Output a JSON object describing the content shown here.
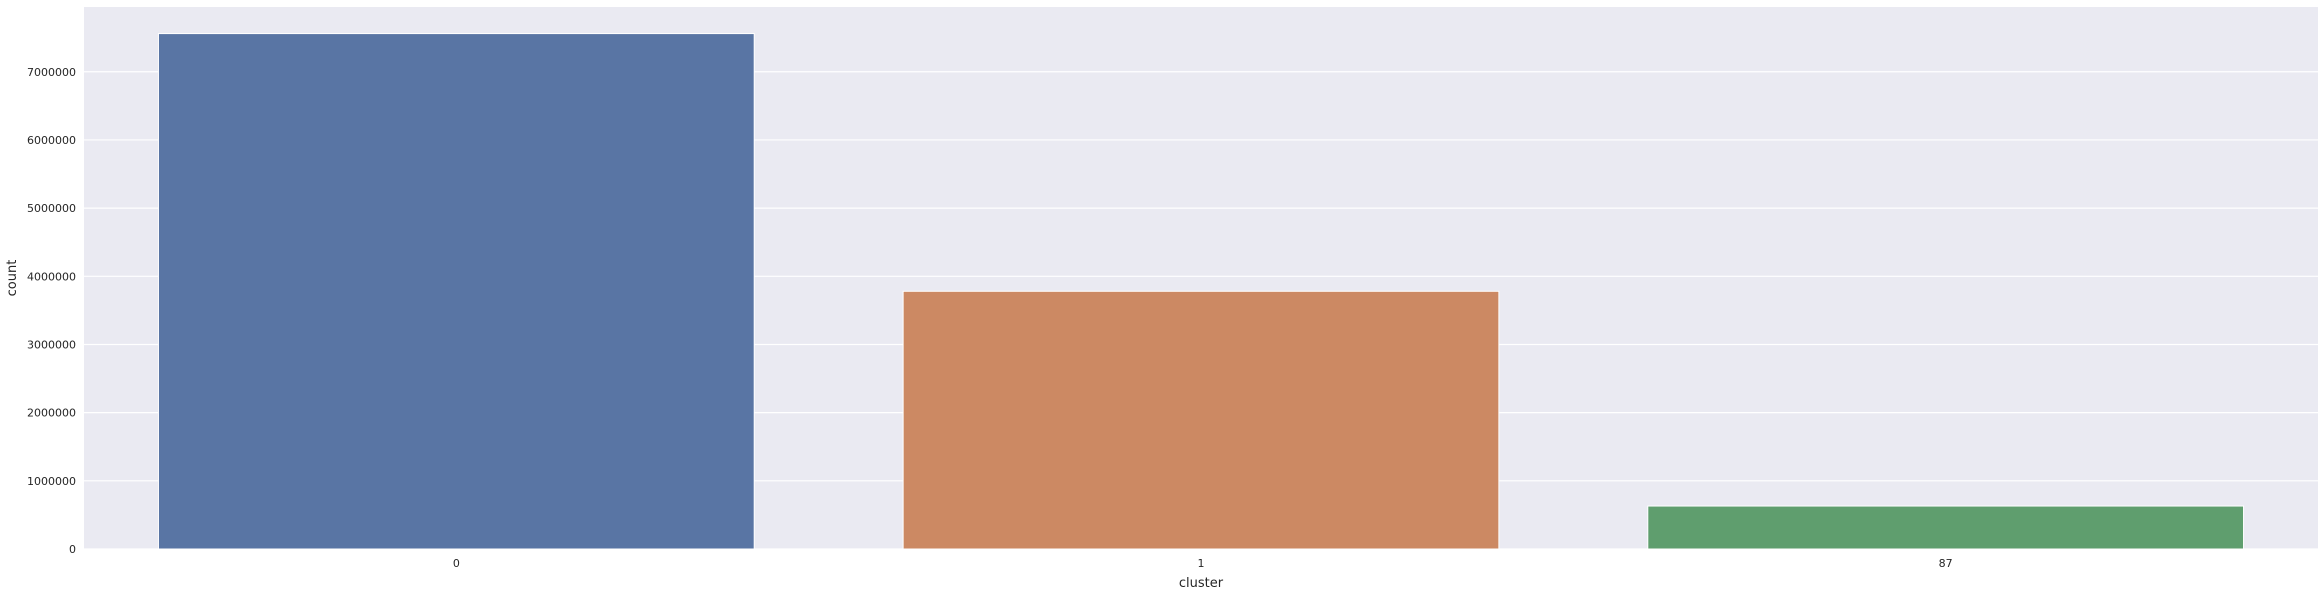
{
  "chart_data": {
    "type": "bar",
    "title": "",
    "xlabel": "cluster",
    "ylabel": "count",
    "categories": [
      "0",
      "1",
      "87"
    ],
    "values": [
      7560000,
      3780000,
      630000
    ],
    "colors": [
      "#5975a4",
      "#cc8963",
      "#5f9e6e"
    ],
    "ylim": [
      0,
      7950000
    ],
    "yticks": [
      0,
      1000000,
      2000000,
      3000000,
      4000000,
      5000000,
      6000000,
      7000000
    ],
    "ytick_labels": [
      "0",
      "1000000",
      "2000000",
      "3000000",
      "4000000",
      "5000000",
      "6000000",
      "7000000"
    ],
    "grid": true,
    "background": "#eaeaf2",
    "grid_color": "#ffffff"
  }
}
